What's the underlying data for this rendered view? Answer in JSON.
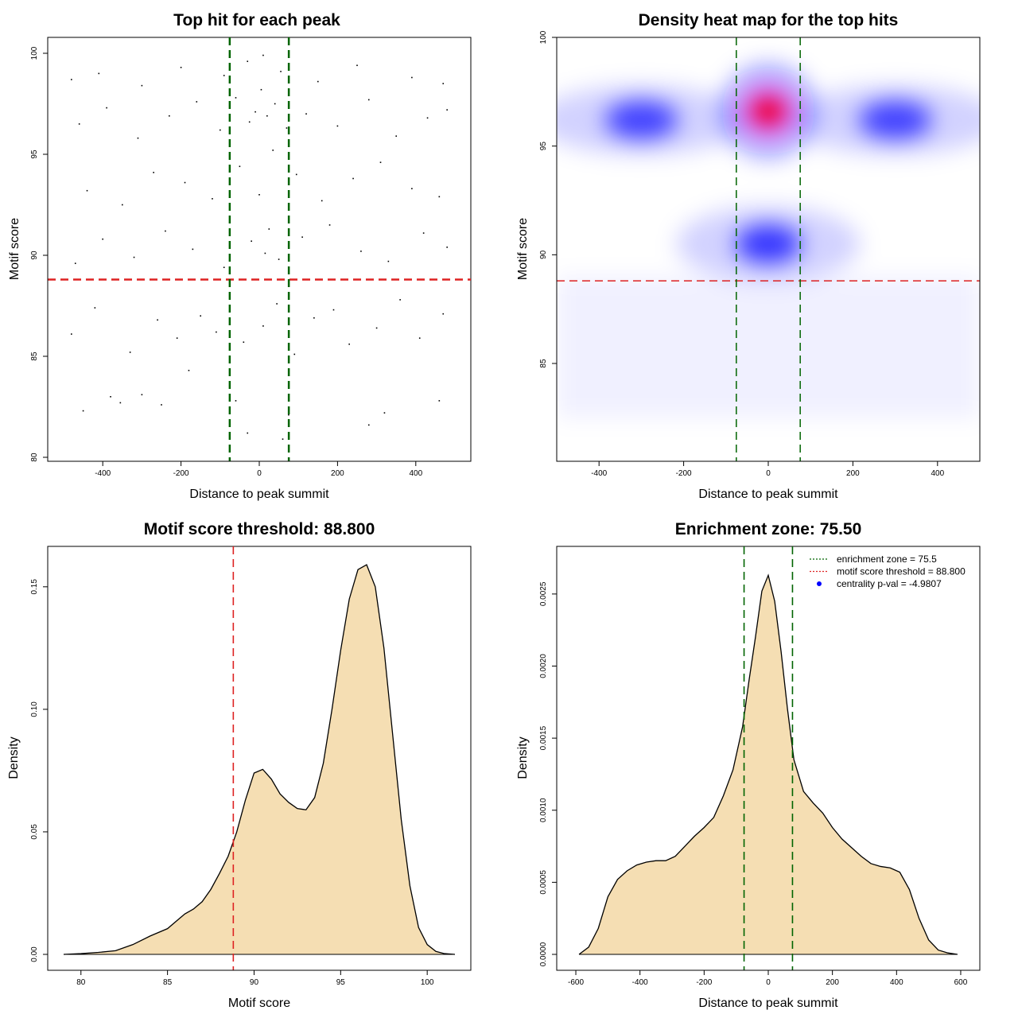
{
  "chart_data": [
    {
      "type": "scatter",
      "title": "Top hit for each peak",
      "xlabel": "Distance to peak summit",
      "ylabel": "Motif score",
      "xlim": [
        -500,
        500
      ],
      "ylim": [
        80,
        100
      ],
      "xticks": [
        -400,
        -200,
        0,
        200,
        400
      ],
      "xtick_labels": [
        "-400",
        "-200",
        "0",
        "200",
        "400"
      ],
      "yticks": [
        80,
        85,
        90,
        95,
        100
      ],
      "ytick_labels": [
        "80",
        "85",
        "90",
        "95",
        "100"
      ],
      "points": [
        [
          -450,
          82.3
        ],
        [
          -380,
          83.0
        ],
        [
          -355,
          82.7
        ],
        [
          -300,
          83.1
        ],
        [
          -250,
          82.6
        ],
        [
          -180,
          84.3
        ],
        [
          -60,
          82.8
        ],
        [
          -30,
          81.2
        ],
        [
          60,
          80.9
        ],
        [
          75,
          82.1
        ],
        [
          280,
          81.6
        ],
        [
          320,
          82.2
        ],
        [
          460,
          82.8
        ],
        [
          -480,
          86.1
        ],
        [
          -420,
          87.4
        ],
        [
          -330,
          85.2
        ],
        [
          -260,
          86.8
        ],
        [
          -210,
          85.9
        ],
        [
          -150,
          87.0
        ],
        [
          -110,
          86.2
        ],
        [
          -40,
          85.7
        ],
        [
          10,
          86.5
        ],
        [
          45,
          87.6
        ],
        [
          90,
          85.1
        ],
        [
          140,
          86.9
        ],
        [
          190,
          87.3
        ],
        [
          230,
          85.6
        ],
        [
          300,
          86.4
        ],
        [
          360,
          87.8
        ],
        [
          410,
          85.9
        ],
        [
          470,
          87.1
        ],
        [
          -470,
          89.6
        ],
        [
          -400,
          90.8
        ],
        [
          -320,
          89.9
        ],
        [
          -240,
          91.2
        ],
        [
          -170,
          90.3
        ],
        [
          -90,
          89.4
        ],
        [
          -20,
          90.7
        ],
        [
          15,
          90.1
        ],
        [
          25,
          91.3
        ],
        [
          50,
          89.8
        ],
        [
          110,
          90.9
        ],
        [
          180,
          91.5
        ],
        [
          260,
          90.2
        ],
        [
          330,
          89.7
        ],
        [
          420,
          91.1
        ],
        [
          480,
          90.4
        ],
        [
          -440,
          93.2
        ],
        [
          -350,
          92.5
        ],
        [
          -270,
          94.1
        ],
        [
          -190,
          93.6
        ],
        [
          -120,
          92.8
        ],
        [
          -50,
          94.4
        ],
        [
          0,
          93.0
        ],
        [
          35,
          95.2
        ],
        [
          95,
          94.0
        ],
        [
          160,
          92.7
        ],
        [
          240,
          93.8
        ],
        [
          310,
          94.6
        ],
        [
          390,
          93.3
        ],
        [
          460,
          92.9
        ],
        [
          -460,
          96.5
        ],
        [
          -390,
          97.3
        ],
        [
          -310,
          95.8
        ],
        [
          -230,
          96.9
        ],
        [
          -160,
          97.6
        ],
        [
          -100,
          96.2
        ],
        [
          -60,
          97.8
        ],
        [
          -25,
          96.6
        ],
        [
          -10,
          97.1
        ],
        [
          5,
          98.2
        ],
        [
          20,
          96.9
        ],
        [
          40,
          97.5
        ],
        [
          70,
          96.3
        ],
        [
          120,
          97.0
        ],
        [
          200,
          96.4
        ],
        [
          280,
          97.7
        ],
        [
          350,
          95.9
        ],
        [
          430,
          96.8
        ],
        [
          480,
          97.2
        ],
        [
          -480,
          98.7
        ],
        [
          -410,
          99.0
        ],
        [
          -300,
          98.4
        ],
        [
          -200,
          99.3
        ],
        [
          -90,
          98.9
        ],
        [
          -30,
          99.6
        ],
        [
          10,
          99.9
        ],
        [
          55,
          99.1
        ],
        [
          150,
          98.6
        ],
        [
          250,
          99.4
        ],
        [
          390,
          98.8
        ],
        [
          470,
          98.5
        ]
      ],
      "hlines": [
        {
          "y": 88.8,
          "color": "#dd2222",
          "style": "dashed"
        }
      ],
      "vlines": [
        {
          "x": -75.5,
          "color": "#006400",
          "style": "dashed"
        },
        {
          "x": 75.5,
          "color": "#006400",
          "style": "dashed"
        }
      ]
    },
    {
      "type": "heatmap",
      "title": "Density heat map for the top hits",
      "xlabel": "Distance to peak summit",
      "ylabel": "Motif score",
      "xlim": [
        -500,
        500
      ],
      "ylim": [
        80.5,
        100
      ],
      "xticks": [
        -400,
        -200,
        0,
        200,
        400
      ],
      "xtick_labels": [
        "-400",
        "-200",
        "0",
        "200",
        "400"
      ],
      "yticks": [
        85,
        90,
        95,
        100
      ],
      "ytick_labels": [
        "85",
        "90",
        "95",
        "100"
      ],
      "colors": [
        "#ffffff",
        "#0000ff",
        "#ff0000"
      ],
      "density_peaks": [
        {
          "x": 0,
          "y": 96.6,
          "weight": 1.0
        },
        {
          "x": 0,
          "y": 90.5,
          "weight": 0.5
        },
        {
          "x": -300,
          "y": 96.2,
          "weight": 0.35
        },
        {
          "x": 300,
          "y": 96.2,
          "weight": 0.35
        }
      ],
      "hlines": [
        {
          "y": 88.8,
          "color": "#dd2222",
          "style": "dashed"
        }
      ],
      "vlines": [
        {
          "x": -75.5,
          "color": "#006400",
          "style": "dashed"
        },
        {
          "x": 75.5,
          "color": "#006400",
          "style": "dashed"
        }
      ]
    },
    {
      "type": "area",
      "title": "Motif score threshold: 88.800",
      "xlabel": "Motif score",
      "ylabel": "Density",
      "xlim": [
        79,
        101.6
      ],
      "ylim": [
        0,
        0.16
      ],
      "xticks": [
        80,
        85,
        90,
        95,
        100
      ],
      "xtick_labels": [
        "80",
        "85",
        "90",
        "95",
        "100"
      ],
      "yticks": [
        0,
        0.05,
        0.1,
        0.15
      ],
      "ytick_labels": [
        "0.00",
        "0.05",
        "0.10",
        "0.15"
      ],
      "fill": "#f5deb3",
      "x": [
        79.0,
        80.0,
        81.0,
        82.0,
        83.0,
        84.0,
        85.0,
        85.5,
        86.0,
        86.5,
        87.0,
        87.5,
        88.0,
        88.5,
        89.0,
        89.5,
        90.0,
        90.5,
        91.0,
        91.5,
        92.0,
        92.5,
        93.0,
        93.5,
        94.0,
        94.5,
        95.0,
        95.5,
        96.0,
        96.5,
        97.0,
        97.5,
        98.0,
        98.5,
        99.0,
        99.5,
        100.0,
        100.5,
        101.0,
        101.6
      ],
      "y": [
        0.0,
        0.0003,
        0.0008,
        0.0015,
        0.004,
        0.0075,
        0.0105,
        0.0135,
        0.0165,
        0.0185,
        0.0215,
        0.0265,
        0.033,
        0.04,
        0.05,
        0.063,
        0.074,
        0.0755,
        0.0715,
        0.0655,
        0.062,
        0.0595,
        0.059,
        0.064,
        0.078,
        0.1,
        0.124,
        0.145,
        0.157,
        0.159,
        0.15,
        0.125,
        0.09,
        0.055,
        0.028,
        0.011,
        0.004,
        0.0012,
        0.0003,
        0.0
      ],
      "vlines": [
        {
          "x": 88.8,
          "color": "#dd2222",
          "style": "dashed"
        }
      ]
    },
    {
      "type": "area",
      "title": "Enrichment zone: 75.50",
      "xlabel": "Distance to peak summit",
      "ylabel": "Density",
      "xlim": [
        -610,
        610
      ],
      "ylim": [
        0,
        0.00272
      ],
      "xticks": [
        -600,
        -400,
        -200,
        0,
        200,
        400,
        600
      ],
      "xtick_labels": [
        "-600",
        "-400",
        "-200",
        "0",
        "200",
        "400",
        "600"
      ],
      "yticks": [
        0,
        0.0005,
        0.001,
        0.0015,
        0.002,
        0.0025
      ],
      "ytick_labels": [
        "0.0000",
        "0.0005",
        "0.0010",
        "0.0015",
        "0.0020",
        "0.0025"
      ],
      "fill": "#f5deb3",
      "x": [
        -590,
        -560,
        -530,
        -500,
        -470,
        -440,
        -410,
        -380,
        -350,
        -320,
        -290,
        -260,
        -230,
        -200,
        -170,
        -140,
        -110,
        -80,
        -60,
        -40,
        -20,
        0,
        20,
        40,
        60,
        80,
        110,
        140,
        170,
        200,
        230,
        260,
        290,
        320,
        350,
        380,
        410,
        440,
        470,
        500,
        530,
        560,
        590
      ],
      "y": [
        0.0,
        5e-05,
        0.00018,
        0.0004,
        0.00052,
        0.00058,
        0.00062,
        0.00064,
        0.00065,
        0.00065,
        0.00068,
        0.00075,
        0.00082,
        0.00088,
        0.00095,
        0.0011,
        0.00128,
        0.00158,
        0.0019,
        0.0022,
        0.00252,
        0.00263,
        0.00245,
        0.0021,
        0.0017,
        0.00135,
        0.00113,
        0.00105,
        0.00098,
        0.00088,
        0.0008,
        0.00074,
        0.00068,
        0.00063,
        0.00061,
        0.0006,
        0.00057,
        0.00045,
        0.00025,
        0.0001,
        3e-05,
        1e-05,
        0.0
      ],
      "vlines": [
        {
          "x": -75.5,
          "color": "#006400",
          "style": "dashed"
        },
        {
          "x": 75.5,
          "color": "#006400",
          "style": "dashed"
        }
      ],
      "legend": {
        "position": "top-right",
        "entries": [
          {
            "label": "enrichment zone = 75.5",
            "color": "#006400",
            "kind": "dotted-line"
          },
          {
            "label": "motif score threshold = 88.800",
            "color": "#dd2222",
            "kind": "dotted-line"
          },
          {
            "label": "centrality p-val = -4.9807",
            "color": "#0000ff",
            "kind": "point"
          }
        ]
      }
    }
  ]
}
